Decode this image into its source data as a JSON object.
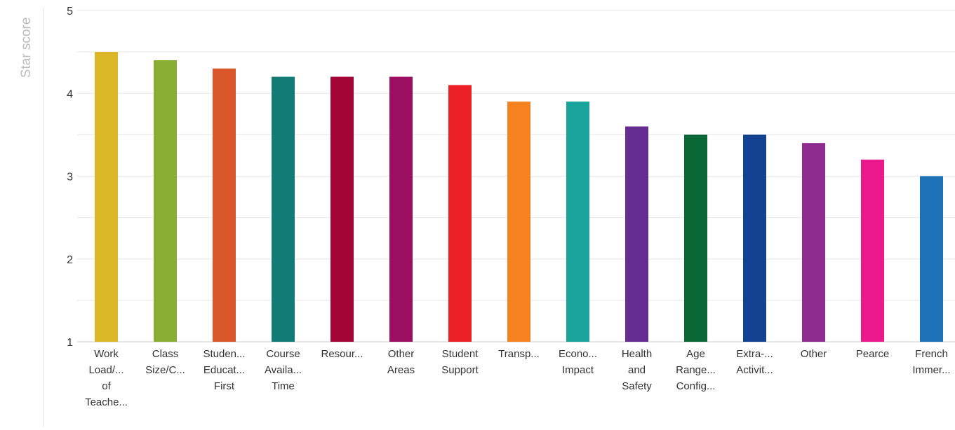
{
  "chart_data": {
    "type": "bar",
    "ylabel": "Star score",
    "ylim": [
      1,
      5
    ],
    "yticks": [
      1,
      2,
      3,
      4,
      5
    ],
    "grid": true,
    "categories": [
      [
        "Work",
        "Load/...",
        "of",
        "Teache..."
      ],
      [
        "Class",
        "Size/C..."
      ],
      [
        "Studen...",
        "Educat...",
        "First"
      ],
      [
        "Course",
        "Availa...",
        "Time"
      ],
      [
        "Resour..."
      ],
      [
        "Other",
        "Areas"
      ],
      [
        "Student",
        "Support"
      ],
      [
        "Transp..."
      ],
      [
        "Econo...",
        "Impact"
      ],
      [
        "Health",
        "and",
        "Safety"
      ],
      [
        "Age",
        "Range...",
        "Config..."
      ],
      [
        "Extra-...",
        "Activit..."
      ],
      [
        "Other"
      ],
      [
        "Pearce"
      ],
      [
        "French",
        "Immer..."
      ]
    ],
    "values": [
      4.5,
      4.4,
      4.3,
      4.2,
      4.2,
      4.2,
      4.1,
      3.9,
      3.9,
      3.6,
      3.5,
      3.5,
      3.4,
      3.2,
      3.0
    ],
    "colors": [
      "#dbb728",
      "#8aae34",
      "#d9572b",
      "#127b76",
      "#a30636",
      "#9a0f62",
      "#ec2127",
      "#f5821f",
      "#19a49c",
      "#652d91",
      "#0a6836",
      "#134293",
      "#8e2b8f",
      "#ec198d",
      "#1c71b8"
    ]
  }
}
